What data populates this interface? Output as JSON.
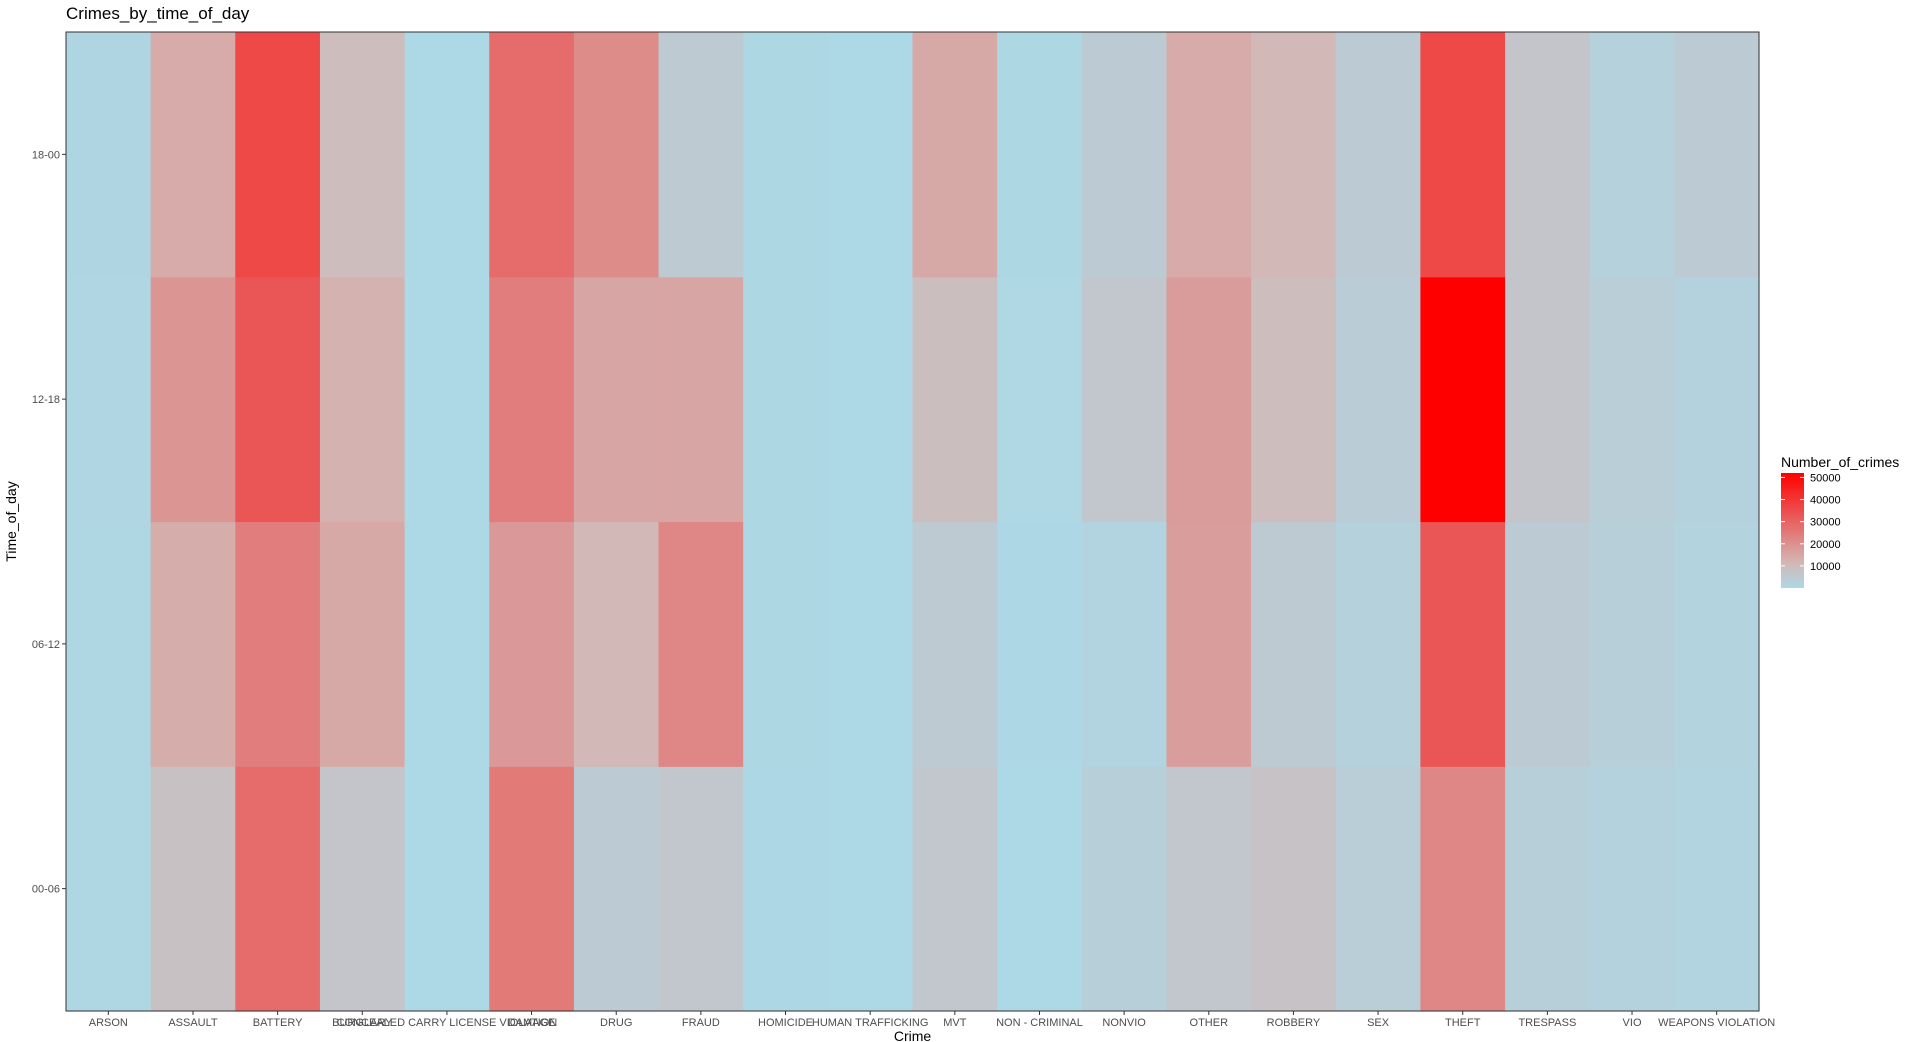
{
  "chart_data": {
    "type": "heatmap",
    "title": "Crimes_by_time_of_day",
    "xlabel": "Crime",
    "ylabel": "Time_of_day",
    "x": [
      "ARSON",
      "ASSAULT",
      "BATTERY",
      "BURGLARY",
      "CONCEALED CARRY LICENSE VIOLATION",
      "DAMAGE",
      "DRUG",
      "FRAUD",
      "HOMICIDE",
      "HUMAN TRAFFICKING",
      "MVT",
      "NON - CRIMINAL",
      "NONVIO",
      "OTHER",
      "ROBBERY",
      "SEX",
      "THEFT",
      "TRESPASS",
      "VIO",
      "WEAPONS VIOLATION"
    ],
    "x_tick_labels": [
      "ARSON",
      "ASSAULT",
      "BATTERY",
      "BURGLARY",
      "CONCEALED CARRY LICENSE VIOLATION",
      "DAMAGE",
      "DRUG",
      "FRAUD",
      "HOMICIDE",
      "HUMAN TRAFFICKING",
      "MVT",
      "NON - CRIMINAL",
      "NONVIO",
      "OTHER",
      "ROBBERY",
      "SEX",
      "THEFT",
      "TRESPASS",
      "VIO",
      "WEAPONS VIOLATION"
    ],
    "y": [
      "00-06",
      "06-12",
      "12-18",
      "18-00"
    ],
    "values": [
      [
        600,
        8000,
        28000,
        6500,
        0,
        25000,
        4500,
        6000,
        200,
        0,
        6000,
        100,
        3000,
        6000,
        7500,
        3500,
        22000,
        3000,
        2000,
        1500
      ],
      [
        700,
        13500,
        24000,
        14500,
        0,
        18000,
        11000,
        22000,
        400,
        0,
        5000,
        300,
        1500,
        17000,
        5000,
        2500,
        33000,
        4500,
        3000,
        1700
      ],
      [
        800,
        19000,
        33000,
        12500,
        0,
        24000,
        15500,
        15500,
        400,
        0,
        9000,
        500,
        6000,
        17500,
        9500,
        4000,
        52000,
        6500,
        3500,
        2200
      ],
      [
        1000,
        14000,
        36000,
        9500,
        0,
        28000,
        21000,
        5000,
        400,
        0,
        14500,
        400,
        4500,
        14000,
        11000,
        4500,
        36000,
        6500,
        2500,
        4500
      ]
    ],
    "legend": {
      "title": "Number_of_crimes",
      "ticks": [
        10000,
        20000,
        30000,
        40000,
        50000
      ],
      "tick_labels": [
        "10000",
        "20000",
        "30000",
        "40000",
        "50000"
      ],
      "position": "right"
    },
    "color_scale": {
      "low": "#add8e6",
      "mid": "#d3b7b5",
      "high": "#ff0000"
    },
    "vlim": [
      0,
      52000
    ],
    "grid": false
  }
}
